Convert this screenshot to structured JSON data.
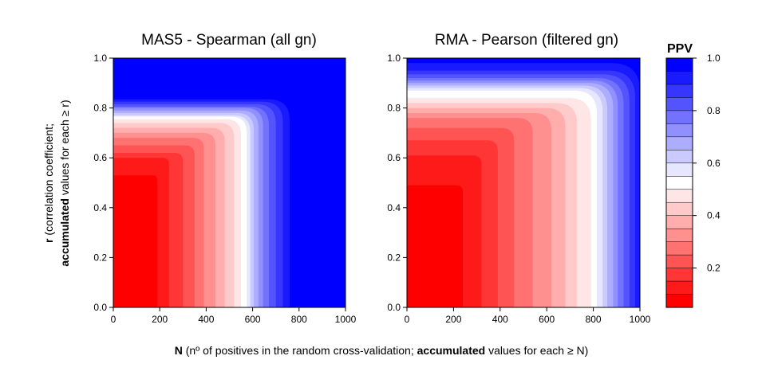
{
  "figure": {
    "xlabel_parts": [
      "N",
      " (nº of positives in the random cross-validation; ",
      "accumulated",
      " values for each ≥ N)"
    ],
    "ylabel_line1_parts": [
      "r",
      " (correlation coefficient;"
    ],
    "ylabel_line2_parts": [
      "accumulated",
      " values for each ≥ r)"
    ]
  },
  "chart_data": [
    {
      "type": "heatmap",
      "title": "MAS5 - Spearman (all gn)",
      "x_ticks": [
        0,
        200,
        400,
        600,
        800,
        1000
      ],
      "y_ticks": [
        "0.0",
        "0.2",
        "0.4",
        "0.6",
        "0.8",
        "1.0"
      ],
      "xlim": [
        0,
        1000
      ],
      "ylim": [
        0,
        1
      ],
      "contours": [
        {
          "ppv": 1.0,
          "n": 800,
          "r": 0.85
        },
        {
          "ppv": 0.95,
          "n": 760,
          "r": 0.835
        },
        {
          "ppv": 0.9,
          "n": 730,
          "r": 0.825
        },
        {
          "ppv": 0.85,
          "n": 700,
          "r": 0.815
        },
        {
          "ppv": 0.8,
          "n": 670,
          "r": 0.805
        },
        {
          "ppv": 0.75,
          "n": 645,
          "r": 0.8
        },
        {
          "ppv": 0.7,
          "n": 625,
          "r": 0.79
        },
        {
          "ppv": 0.65,
          "n": 605,
          "r": 0.78
        },
        {
          "ppv": 0.6,
          "n": 590,
          "r": 0.77
        },
        {
          "ppv": 0.55,
          "n": 575,
          "r": 0.765
        },
        {
          "ppv": 0.5,
          "n": 550,
          "r": 0.755
        },
        {
          "ppv": 0.45,
          "n": 520,
          "r": 0.74
        },
        {
          "ppv": 0.4,
          "n": 480,
          "r": 0.72
        },
        {
          "ppv": 0.35,
          "n": 440,
          "r": 0.7
        },
        {
          "ppv": 0.3,
          "n": 390,
          "r": 0.68
        },
        {
          "ppv": 0.25,
          "n": 350,
          "r": 0.65
        },
        {
          "ppv": 0.2,
          "n": 300,
          "r": 0.62
        },
        {
          "ppv": 0.15,
          "n": 240,
          "r": 0.6
        },
        {
          "ppv": 0.1,
          "n": 190,
          "r": 0.53
        }
      ]
    },
    {
      "type": "heatmap",
      "title": "RMA - Pearson (filtered gn)",
      "x_ticks": [
        0,
        200,
        400,
        600,
        800,
        1000
      ],
      "y_ticks": [
        "0.0",
        "0.2",
        "0.4",
        "0.6",
        "0.8",
        "1.0"
      ],
      "xlim": [
        0,
        1000
      ],
      "ylim": [
        0,
        1
      ],
      "contours": [
        {
          "ppv": 1.0,
          "n": 1000,
          "r": 1.0
        },
        {
          "ppv": 0.95,
          "n": 1000,
          "r": 0.98
        },
        {
          "ppv": 0.9,
          "n": 980,
          "r": 0.95
        },
        {
          "ppv": 0.85,
          "n": 955,
          "r": 0.935
        },
        {
          "ppv": 0.8,
          "n": 930,
          "r": 0.92
        },
        {
          "ppv": 0.75,
          "n": 905,
          "r": 0.91
        },
        {
          "ppv": 0.7,
          "n": 885,
          "r": 0.9
        },
        {
          "ppv": 0.65,
          "n": 860,
          "r": 0.89
        },
        {
          "ppv": 0.6,
          "n": 840,
          "r": 0.88
        },
        {
          "ppv": 0.55,
          "n": 815,
          "r": 0.87
        },
        {
          "ppv": 0.5,
          "n": 790,
          "r": 0.84
        },
        {
          "ppv": 0.45,
          "n": 730,
          "r": 0.82
        },
        {
          "ppv": 0.4,
          "n": 680,
          "r": 0.8
        },
        {
          "ppv": 0.35,
          "n": 620,
          "r": 0.78
        },
        {
          "ppv": 0.3,
          "n": 540,
          "r": 0.76
        },
        {
          "ppv": 0.25,
          "n": 460,
          "r": 0.72
        },
        {
          "ppv": 0.2,
          "n": 390,
          "r": 0.67
        },
        {
          "ppv": 0.15,
          "n": 320,
          "r": 0.61
        },
        {
          "ppv": 0.1,
          "n": 240,
          "r": 0.49
        }
      ]
    }
  ],
  "colorbar": {
    "title": "PPV",
    "ticks": [
      "0.2",
      "0.4",
      "0.6",
      "0.8",
      "1.0"
    ],
    "levels": [
      {
        "ppv": 1.0,
        "color": "#0000ff"
      },
      {
        "ppv": 0.95,
        "color": "#1a1aff"
      },
      {
        "ppv": 0.9,
        "color": "#3636ff"
      },
      {
        "ppv": 0.85,
        "color": "#5454ff"
      },
      {
        "ppv": 0.8,
        "color": "#7272ff"
      },
      {
        "ppv": 0.75,
        "color": "#9090ff"
      },
      {
        "ppv": 0.7,
        "color": "#adadff"
      },
      {
        "ppv": 0.65,
        "color": "#cacaff"
      },
      {
        "ppv": 0.6,
        "color": "#e6e6ff"
      },
      {
        "ppv": 0.55,
        "color": "#ffffff"
      },
      {
        "ppv": 0.5,
        "color": "#ffe6e6"
      },
      {
        "ppv": 0.45,
        "color": "#ffcaca"
      },
      {
        "ppv": 0.4,
        "color": "#ffadad"
      },
      {
        "ppv": 0.35,
        "color": "#ff9090"
      },
      {
        "ppv": 0.3,
        "color": "#ff7272"
      },
      {
        "ppv": 0.25,
        "color": "#ff5454"
      },
      {
        "ppv": 0.2,
        "color": "#ff3636"
      },
      {
        "ppv": 0.15,
        "color": "#ff1a1a"
      },
      {
        "ppv": 0.1,
        "color": "#ff0000"
      }
    ]
  }
}
